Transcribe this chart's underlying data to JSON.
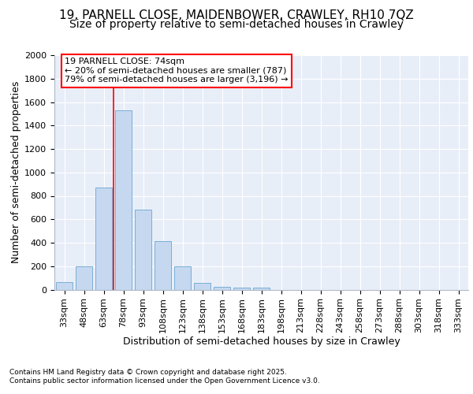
{
  "title1": "19, PARNELL CLOSE, MAIDENBOWER, CRAWLEY, RH10 7QZ",
  "title2": "Size of property relative to semi-detached houses in Crawley",
  "xlabel": "Distribution of semi-detached houses by size in Crawley",
  "ylabel": "Number of semi-detached properties",
  "categories": [
    "33sqm",
    "48sqm",
    "63sqm",
    "78sqm",
    "93sqm",
    "108sqm",
    "123sqm",
    "138sqm",
    "153sqm",
    "168sqm",
    "183sqm",
    "198sqm",
    "213sqm",
    "228sqm",
    "243sqm",
    "258sqm",
    "273sqm",
    "288sqm",
    "303sqm",
    "318sqm",
    "333sqm"
  ],
  "values": [
    65,
    195,
    870,
    1530,
    685,
    415,
    195,
    55,
    25,
    20,
    20,
    0,
    0,
    0,
    0,
    0,
    0,
    0,
    0,
    0,
    0
  ],
  "bar_color": "#c5d8f0",
  "bar_edge_color": "#7aaed6",
  "vline_x_index": 3,
  "vline_color": "red",
  "annotation_title": "19 PARNELL CLOSE: 74sqm",
  "annotation_line1": "← 20% of semi-detached houses are smaller (787)",
  "annotation_line2": "79% of semi-detached houses are larger (3,196) →",
  "annotation_box_color": "white",
  "annotation_box_edge": "red",
  "ylim": [
    0,
    2000
  ],
  "yticks": [
    0,
    200,
    400,
    600,
    800,
    1000,
    1200,
    1400,
    1600,
    1800,
    2000
  ],
  "footnote1": "Contains HM Land Registry data © Crown copyright and database right 2025.",
  "footnote2": "Contains public sector information licensed under the Open Government Licence v3.0.",
  "bg_color": "#e8eef8",
  "grid_color": "#ffffff",
  "title_fontsize": 11,
  "subtitle_fontsize": 10,
  "tick_fontsize": 8,
  "xlabel_fontsize": 9,
  "ylabel_fontsize": 9
}
